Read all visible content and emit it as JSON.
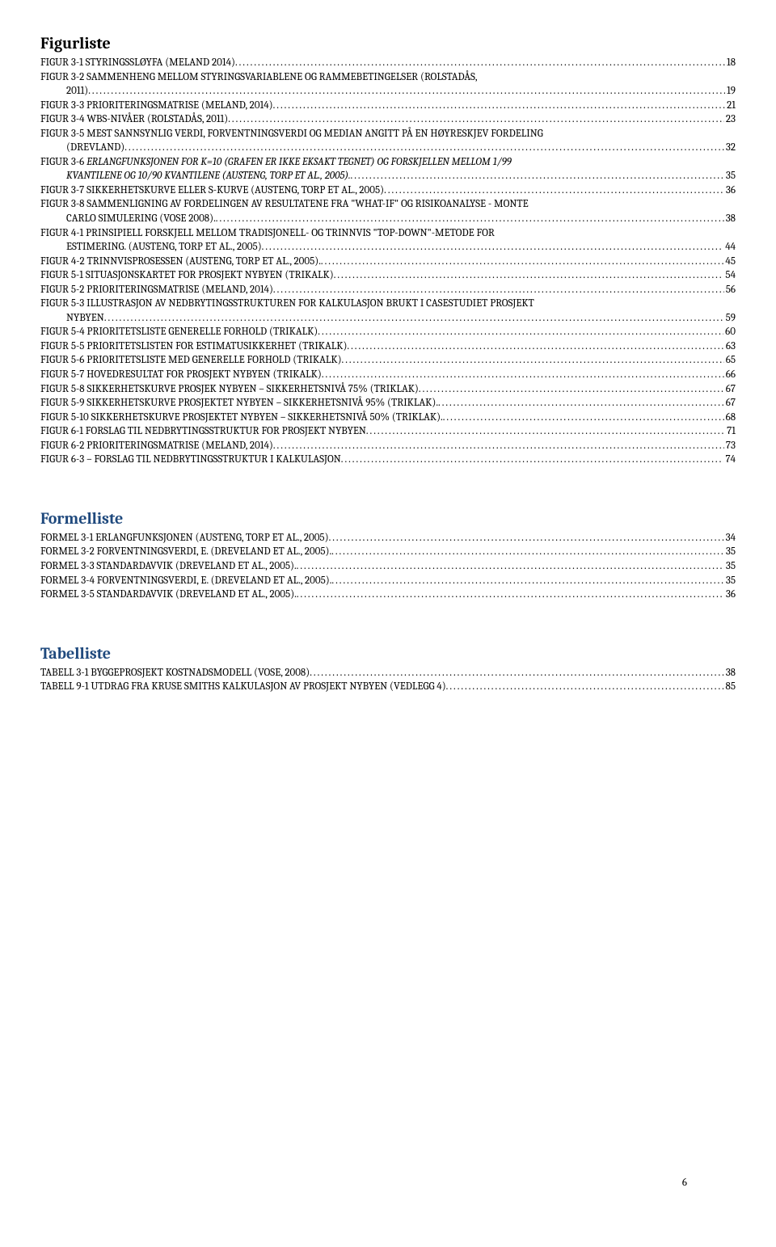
{
  "sections": {
    "figurliste": {
      "title": "Figurliste",
      "title_color": "black",
      "entries": [
        {
          "label": "FIGUR 3-1 STYRINGSSLØYFA (MELAND 2014)",
          "page": "18"
        },
        {
          "label": "FIGUR 3-2 SAMMENHENG MELLOM STYRINGSVARIABLENE OG RAMMEBETINGELSER (ROLSTADÅS, 2011)",
          "page": "19",
          "cont": true
        },
        {
          "label": "FIGUR 3-3 PRIORITERINGSMATRISE (MELAND, 2014)",
          "page": "21"
        },
        {
          "label": "FIGUR 3-4 WBS-NIVÅER (ROLSTADÅS, 2011)",
          "page": "23"
        },
        {
          "label": "FIGUR 3-5 MEST SANNSYNLIG VERDI, FORVENTNINGSVERDI OG MEDIAN ANGITT PÅ EN HØYRESKJEV FORDELING (DREVLAND)",
          "page": "32",
          "cont": true
        },
        {
          "label": "FIGUR 3-6 ERLANGFUNKSJONEN FOR K=10 (GRAFEN ER IKKE EKSAKT TEGNET) OG FORSKJELLEN MELLOM 1/99 KVANTILENE OG 10/90 KVANTILENE (AUSTENG, TORP ET AL., 2005).",
          "page": "35",
          "italic_tail": "ERLANGFUNKSJONEN FOR K=10 (GRAFEN ER IKKE EKSAKT TEGNET) OG FORSKJELLEN MELLOM 1/99 KVANTILENE OG 10/90 KVANTILENE (AUSTENG, TORP ET AL., 2005).",
          "cont": true
        },
        {
          "label": "FIGUR 3-7 SIKKERHETSKURVE ELLER S-KURVE (AUSTENG, TORP ET AL., 2005)",
          "page": "36"
        },
        {
          "label": "FIGUR 3-8 SAMMENLIGNING AV FORDELINGEN AV RESULTATENE FRA \"WHAT-IF\" OG RISIKOANALYSE - MONTE CARLO SIMULERING (VOSE 2008).",
          "page": "38",
          "cont": true
        },
        {
          "label": "FIGUR 4-1 PRINSIPIELL FORSKJELL MELLOM TRADISJONELL- OG TRINNVIS \"TOP-DOWN\"-METODE FOR ESTIMERING. (AUSTENG, TORP ET AL., 2005)",
          "page": "44",
          "cont": true
        },
        {
          "label": "FIGUR 4-2 TRINNVISPROSESSEN (AUSTENG, TORP ET AL., 2005).",
          "page": "45"
        },
        {
          "label": "FIGUR 5-1 SITUASJONSKARTET FOR PROSJEKT NYBYEN (TRIKALK)",
          "page": "54"
        },
        {
          "label": "FIGUR 5-2 PRIORITERINGSMATRISE (MELAND, 2014)",
          "page": "56"
        },
        {
          "label": "FIGUR 5-3 ILLUSTRASJON AV NEDBRYTINGSSTRUKTUREN FOR KALKULASJON BRUKT I CASESTUDIET PROSJEKT NYBYEN",
          "page": "59",
          "cont": true
        },
        {
          "label": "FIGUR 5-4 PRIORITETSLISTE GENERELLE FORHOLD (TRIKALK)",
          "page": "60"
        },
        {
          "label": "FIGUR 5-5 PRIORITETSLISTEN FOR ESTIMATUSIKKERHET (TRIKALK)",
          "page": "63"
        },
        {
          "label": "FIGUR 5-6 PRIORITETSLISTE MED GENERELLE FORHOLD (TRIKALK)",
          "page": "65"
        },
        {
          "label": "FIGUR 5-7 HOVEDRESULTAT FOR PROSJEKT NYBYEN (TRIKALK)",
          "page": "66"
        },
        {
          "label": "FIGUR 5-8 SIKKERHETSKURVE PROSJEK NYBYEN – SIKKERHETSNIVÅ 75% (TRIKLAK)",
          "page": "67"
        },
        {
          "label": "FIGUR 5-9 SIKKERHETSKURVE PROSJEKTET NYBYEN – SIKKERHETSNIVÅ 95% (TRIKLAK).",
          "page": "67"
        },
        {
          "label": "FIGUR 5-10 SIKKERHETSKURVE PROSJEKTET NYBYEN – SIKKERHETSNIVÅ 50% (TRIKLAK).",
          "page": "68"
        },
        {
          "label": "FIGUR 6-1 FORSLAG TIL NEDBRYTINGSSTRUKTUR FOR PROSJEKT NYBYEN",
          "page": "71"
        },
        {
          "label": "FIGUR 6-2 PRIORITERINGSMATRISE (MELAND, 2014)",
          "page": "73"
        },
        {
          "label": "FIGUR 6-3 – FORSLAG TIL NEDBRYTINGSSTRUKTUR I KALKULASJON",
          "page": "74"
        }
      ]
    },
    "formelliste": {
      "title": "Formelliste",
      "title_color": "blue",
      "entries": [
        {
          "label": "FORMEL 3-1 ERLANGFUNKSJONEN (AUSTENG, TORP ET AL., 2005)",
          "page": "34"
        },
        {
          "label": "FORMEL 3-2 FORVENTNINGSVERDI, E. (DREVELAND ET AL., 2005).",
          "page": "35"
        },
        {
          "label": "FORMEL 3-3 STANDARDAVVIK (DREVELAND ET AL., 2005).",
          "page": "35"
        },
        {
          "label": "FORMEL 3-4 FORVENTNINGSVERDI, E. (DREVELAND ET AL., 2005).",
          "page": "35"
        },
        {
          "label": "FORMEL 3-5 STANDARDAVVIK (DREVELAND ET AL., 2005).",
          "page": "36"
        }
      ]
    },
    "tabelliste": {
      "title": "Tabelliste",
      "title_color": "blue",
      "entries": [
        {
          "label": "TABELL 3-1 BYGGEPROSJEKT KOSTNADSMODELL (VOSE, 2008)",
          "page": "38"
        },
        {
          "label": "TABELL 9-1 UTDRAG FRA KRUSE SMITHS KALKULASJON AV PROSJEKT NYBYEN (VEDLEGG 4)",
          "page": "85"
        }
      ]
    }
  },
  "page_number": "6",
  "colors": {
    "blue": "#1f497d",
    "black": "#000000",
    "bg": "#ffffff"
  }
}
